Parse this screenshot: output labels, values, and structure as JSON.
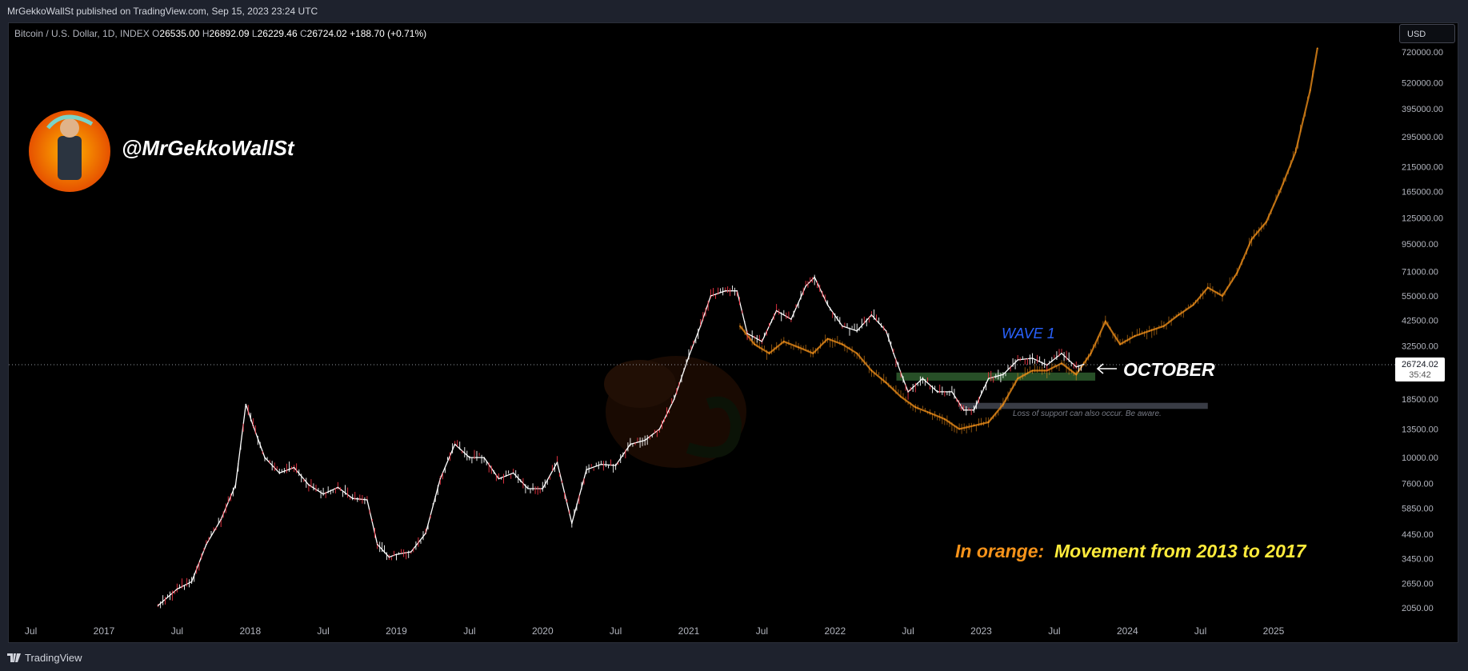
{
  "header": {
    "published_text": "MrGekkoWallSt published on TradingView.com, Sep 15, 2023 23:24 UTC"
  },
  "legend": {
    "symbol": "Bitcoin / U.S. Dollar, 1D, INDEX",
    "o_label": "O",
    "open": "26535.00",
    "h_label": "H",
    "high": "26892.09",
    "l_label": "L",
    "low": "26229.46",
    "c_label": "C",
    "close": "26724.02",
    "change": "+188.70 (+0.71%)"
  },
  "currency_button": "USD",
  "price_tag": {
    "price": "26724.02",
    "countdown": "35:42"
  },
  "author_handle": "@MrGekkoWallSt",
  "footer": {
    "brand": "TradingView"
  },
  "colors": {
    "background": "#000000",
    "up_candle": "#ffffff",
    "down_candle": "#f23645",
    "orange_overlay": "#f7931a",
    "wave_label": "#2962ff",
    "support_zone": "#2e5d2e",
    "caption_orange": "#f7931a",
    "caption_yellow": "#ffeb3b"
  },
  "chart_data": {
    "type": "line",
    "title": "Bitcoin / U.S. Dollar, 1D, INDEX",
    "y_scale": "log",
    "y_ticks": [
      "720000.00",
      "520000.00",
      "395000.00",
      "295000.00",
      "215000.00",
      "165000.00",
      "125000.00",
      "95000.00",
      "71000.00",
      "55000.00",
      "42500.00",
      "32500.00",
      "18500.00",
      "13500.00",
      "10000.00",
      "7600.00",
      "5850.00",
      "4450.00",
      "3450.00",
      "2650.00",
      "2050.00"
    ],
    "x_ticks": [
      "Jul",
      "2017",
      "Jul",
      "2018",
      "Jul",
      "2019",
      "Jul",
      "2020",
      "Jul",
      "2021",
      "Jul",
      "2022",
      "Jul",
      "2023",
      "Jul",
      "2024",
      "Jul",
      "2025"
    ],
    "x_tick_years": [
      2016.5,
      2017.0,
      2017.5,
      2018.0,
      2018.5,
      2019.0,
      2019.5,
      2020.0,
      2020.5,
      2021.0,
      2021.5,
      2022.0,
      2022.5,
      2023.0,
      2023.5,
      2024.0,
      2024.5,
      2025.0
    ],
    "ylim": [
      1900,
      800000
    ],
    "xlim": [
      2016.4,
      2025.8
    ],
    "grid": false,
    "series": [
      {
        "color": "#ffffff",
        "x": [
          2017.37,
          2017.5,
          2017.6,
          2017.7,
          2017.8,
          2017.9,
          2017.97,
          2018.02,
          2018.1,
          2018.2,
          2018.3,
          2018.4,
          2018.5,
          2018.6,
          2018.7,
          2018.8,
          2018.87,
          2018.95,
          2019.0,
          2019.1,
          2019.2,
          2019.3,
          2019.4,
          2019.5,
          2019.6,
          2019.7,
          2019.8,
          2019.9,
          2020.0,
          2020.1,
          2020.2,
          2020.3,
          2020.4,
          2020.5,
          2020.6,
          2020.7,
          2020.8,
          2020.9,
          2021.0,
          2021.08,
          2021.15,
          2021.25,
          2021.33,
          2021.4,
          2021.5,
          2021.6,
          2021.7,
          2021.8,
          2021.86,
          2021.95,
          2022.05,
          2022.15,
          2022.25,
          2022.35,
          2022.4,
          2022.5,
          2022.6,
          2022.7,
          2022.8,
          2022.88,
          2022.95,
          2023.05,
          2023.15,
          2023.25,
          2023.35,
          2023.45,
          2023.55,
          2023.65,
          2023.7
        ],
        "y": [
          2100,
          2500,
          2700,
          4000,
          5200,
          7500,
          17500,
          14000,
          10000,
          8500,
          9000,
          7500,
          6800,
          7300,
          6500,
          6400,
          4000,
          3500,
          3600,
          3700,
          4500,
          8000,
          11500,
          10000,
          10000,
          8000,
          8500,
          7200,
          7200,
          9500,
          5000,
          8800,
          9300,
          9200,
          11500,
          12000,
          13500,
          18500,
          29000,
          40000,
          55000,
          58000,
          58000,
          37000,
          34000,
          47000,
          43000,
          61000,
          67000,
          50000,
          40000,
          38000,
          45000,
          38000,
          30000,
          20000,
          23000,
          20000,
          20000,
          16500,
          16500,
          23000,
          24000,
          28000,
          28500,
          26500,
          30000,
          26000,
          26700
        ]
      },
      {
        "name": "In orange: Movement from 2013 to 2017",
        "color": "#f7931a",
        "x": [
          2021.35,
          2021.45,
          2021.55,
          2021.65,
          2021.75,
          2021.85,
          2021.95,
          2022.05,
          2022.15,
          2022.25,
          2022.35,
          2022.45,
          2022.55,
          2022.65,
          2022.75,
          2022.85,
          2022.95,
          2023.05,
          2023.15,
          2023.25,
          2023.35,
          2023.45,
          2023.55,
          2023.65,
          2023.75,
          2023.85,
          2023.95,
          2024.05,
          2024.15,
          2024.25,
          2024.35,
          2024.45,
          2024.55,
          2024.65,
          2024.75,
          2024.85,
          2024.95,
          2025.05,
          2025.15,
          2025.25,
          2025.3
        ],
        "y": [
          40000,
          33000,
          30000,
          34000,
          32000,
          30000,
          35000,
          33000,
          30000,
          25000,
          22000,
          19000,
          17000,
          16000,
          15000,
          13500,
          14000,
          14500,
          17500,
          23000,
          25000,
          25000,
          27000,
          24000,
          30000,
          42000,
          33000,
          36000,
          38000,
          40000,
          45000,
          50000,
          60000,
          55000,
          70000,
          100000,
          120000,
          170000,
          250000,
          480000,
          750000
        ]
      }
    ],
    "annotations": [
      {
        "text": "WAVE 1",
        "color": "#2962ff"
      },
      {
        "text": "OCTOBER",
        "color": "#ffffff"
      },
      {
        "text": "Loss of support can also occur. Be aware.",
        "color": "#787b86"
      },
      {
        "text": "In orange:",
        "color": "#f7931a"
      },
      {
        "text": "Movement from 2013 to 2017",
        "color": "#ffeb3b"
      }
    ],
    "current_price_line": 26724.02
  }
}
